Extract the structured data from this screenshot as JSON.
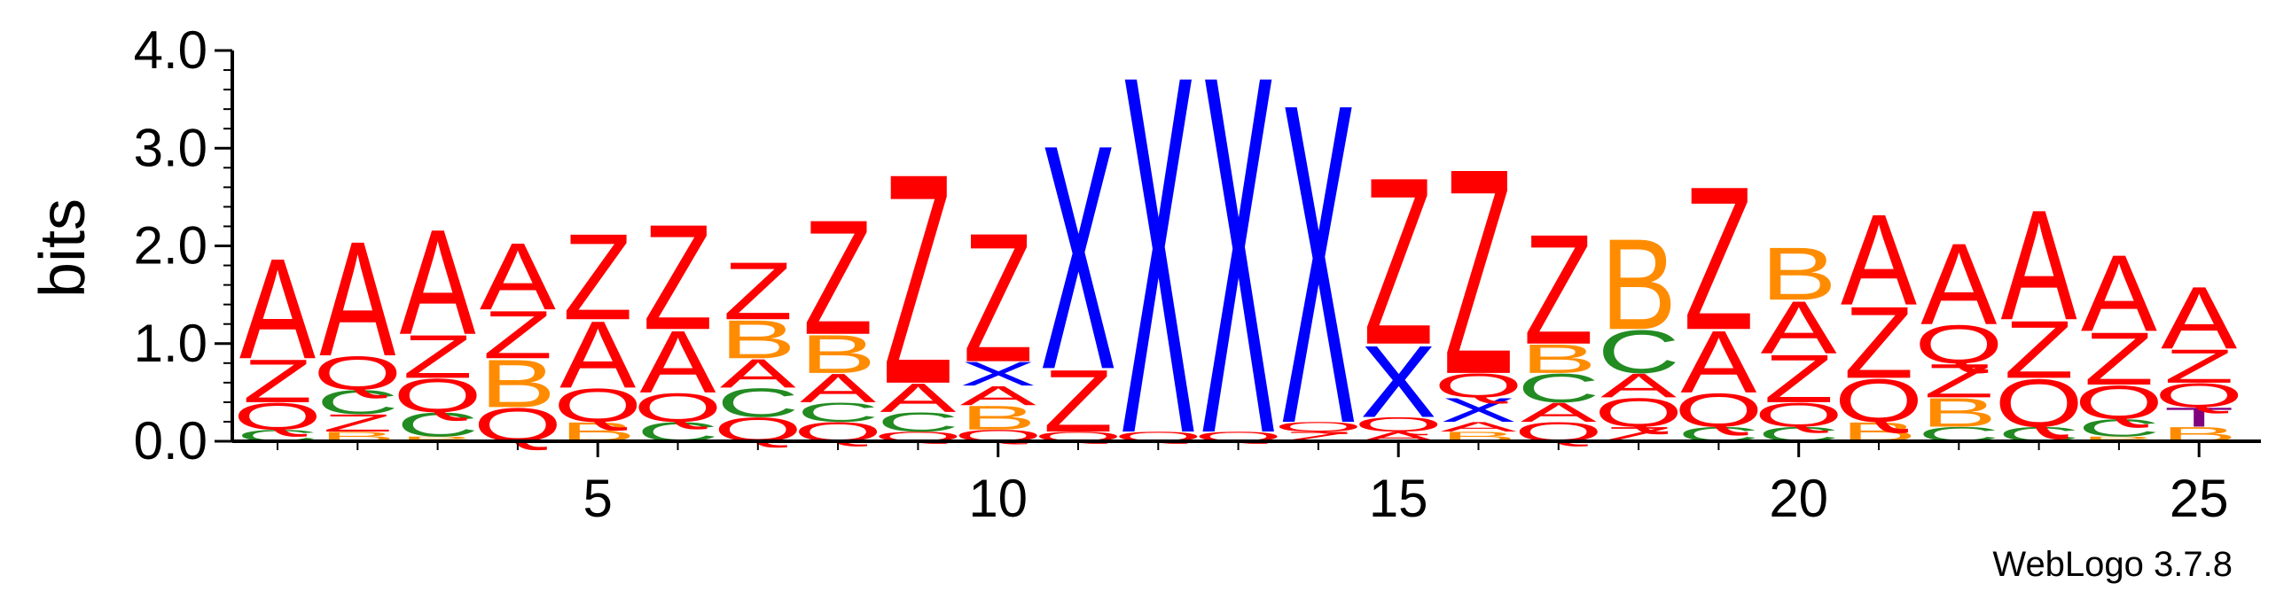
{
  "chart_data": {
    "type": "sequence-logo",
    "ylabel": "bits",
    "ylim": [
      0,
      4.0
    ],
    "y_ticks": [
      "0.0",
      "1.0",
      "2.0",
      "3.0",
      "4.0"
    ],
    "x_ticks": [
      "5",
      "10",
      "15",
      "20",
      "25"
    ],
    "x_tick_positions": [
      5,
      10,
      15,
      20,
      25
    ],
    "footer": "WebLogo 3.7.8",
    "colors": {
      "A": "#ff0000",
      "Z": "#ff0000",
      "Q": "#ff0000",
      "B": "#ff8c00",
      "C": "#228b22",
      "X": "#0000ff",
      "T": "#800080"
    },
    "positions": [
      {
        "pos": 1,
        "stack": [
          [
            "C",
            0.12
          ],
          [
            "Q",
            0.28
          ],
          [
            "Z",
            0.45
          ],
          [
            "A",
            1.05
          ]
        ]
      },
      {
        "pos": 2,
        "stack": [
          [
            "B",
            0.1
          ],
          [
            "Z",
            0.18
          ],
          [
            "C",
            0.25
          ],
          [
            "Q",
            0.35
          ],
          [
            "A",
            1.2
          ]
        ]
      },
      {
        "pos": 3,
        "stack": [
          [
            "B",
            0.05
          ],
          [
            "C",
            0.25
          ],
          [
            "Q",
            0.35
          ],
          [
            "Z",
            0.45
          ],
          [
            "A",
            1.1
          ]
        ]
      },
      {
        "pos": 4,
        "stack": [
          [
            "Q",
            0.35
          ],
          [
            "B",
            0.5
          ],
          [
            "Z",
            0.5
          ],
          [
            "A",
            0.7
          ]
        ]
      },
      {
        "pos": 5,
        "stack": [
          [
            "B",
            0.2
          ],
          [
            "Q",
            0.35
          ],
          [
            "A",
            0.7
          ],
          [
            "Z",
            0.9
          ]
        ]
      },
      {
        "pos": 6,
        "stack": [
          [
            "C",
            0.2
          ],
          [
            "Q",
            0.3
          ],
          [
            "A",
            0.65
          ],
          [
            "Z",
            1.1
          ]
        ]
      },
      {
        "pos": 7,
        "stack": [
          [
            "Q",
            0.25
          ],
          [
            "C",
            0.3
          ],
          [
            "A",
            0.3
          ],
          [
            "B",
            0.4
          ],
          [
            "Z",
            0.6
          ]
        ]
      },
      {
        "pos": 8,
        "stack": [
          [
            "Q",
            0.2
          ],
          [
            "C",
            0.2
          ],
          [
            "A",
            0.3
          ],
          [
            "B",
            0.4
          ],
          [
            "Z",
            1.2
          ]
        ]
      },
      {
        "pos": 9,
        "stack": [
          [
            "Q",
            0.1
          ],
          [
            "C",
            0.2
          ],
          [
            "A",
            0.3
          ],
          [
            "Z",
            2.2
          ]
        ]
      },
      {
        "pos": 10,
        "stack": [
          [
            "Q",
            0.12
          ],
          [
            "B",
            0.25
          ],
          [
            "A",
            0.2
          ],
          [
            "X",
            0.25
          ],
          [
            "Z",
            1.35
          ]
        ]
      },
      {
        "pos": 11,
        "stack": [
          [
            "Q",
            0.1
          ],
          [
            "Z",
            0.65
          ],
          [
            "X",
            2.35
          ]
        ]
      },
      {
        "pos": 12,
        "stack": [
          [
            "Q",
            0.1
          ],
          [
            "X",
            3.75
          ]
        ]
      },
      {
        "pos": 13,
        "stack": [
          [
            "Q",
            0.1
          ],
          [
            "X",
            3.75
          ]
        ]
      },
      {
        "pos": 14,
        "stack": [
          [
            "Z",
            0.1
          ],
          [
            "Q",
            0.1
          ],
          [
            "X",
            3.35
          ]
        ]
      },
      {
        "pos": 15,
        "stack": [
          [
            "A",
            0.1
          ],
          [
            "Q",
            0.15
          ],
          [
            "X",
            0.75
          ],
          [
            "Z",
            1.75
          ]
        ]
      },
      {
        "pos": 16,
        "stack": [
          [
            "B",
            0.1
          ],
          [
            "A",
            0.1
          ],
          [
            "X",
            0.25
          ],
          [
            "Q",
            0.25
          ],
          [
            "Z",
            2.15
          ]
        ]
      },
      {
        "pos": 17,
        "stack": [
          [
            "Q",
            0.2
          ],
          [
            "A",
            0.2
          ],
          [
            "C",
            0.3
          ],
          [
            "B",
            0.3
          ],
          [
            "Z",
            1.15
          ]
        ]
      },
      {
        "pos": 18,
        "stack": [
          [
            "Z",
            0.15
          ],
          [
            "Q",
            0.3
          ],
          [
            "A",
            0.25
          ],
          [
            "C",
            0.45
          ],
          [
            "B",
            0.95
          ]
        ]
      },
      {
        "pos": 19,
        "stack": [
          [
            "C",
            0.15
          ],
          [
            "Q",
            0.35
          ],
          [
            "A",
            0.65
          ],
          [
            "Z",
            1.5
          ]
        ]
      },
      {
        "pos": 20,
        "stack": [
          [
            "C",
            0.15
          ],
          [
            "Q",
            0.25
          ],
          [
            "Z",
            0.5
          ],
          [
            "A",
            0.55
          ],
          [
            "B",
            0.55
          ]
        ]
      },
      {
        "pos": 21,
        "stack": [
          [
            "B",
            0.2
          ],
          [
            "Q",
            0.45
          ],
          [
            "Z",
            0.75
          ],
          [
            "A",
            0.95
          ]
        ]
      },
      {
        "pos": 22,
        "stack": [
          [
            "C",
            0.15
          ],
          [
            "B",
            0.3
          ],
          [
            "Z",
            0.35
          ],
          [
            "Q",
            0.4
          ],
          [
            "A",
            0.85
          ]
        ]
      },
      {
        "pos": 23,
        "stack": [
          [
            "C",
            0.15
          ],
          [
            "Q",
            0.5
          ],
          [
            "Z",
            0.6
          ],
          [
            "A",
            1.15
          ]
        ]
      },
      {
        "pos": 24,
        "stack": [
          [
            "B",
            0.05
          ],
          [
            "C",
            0.18
          ],
          [
            "Q",
            0.35
          ],
          [
            "Z",
            0.55
          ],
          [
            "A",
            0.8
          ]
        ]
      },
      {
        "pos": 25,
        "stack": [
          [
            "B",
            0.15
          ],
          [
            "T",
            0.2
          ],
          [
            "Q",
            0.25
          ],
          [
            "Z",
            0.35
          ],
          [
            "A",
            0.65
          ]
        ]
      }
    ]
  }
}
